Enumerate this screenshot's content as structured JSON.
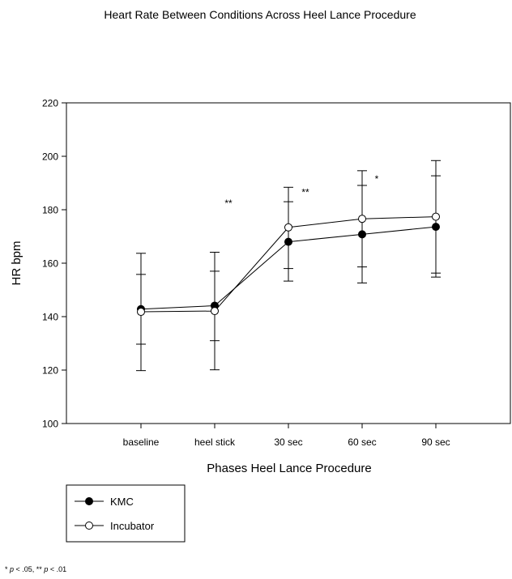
{
  "chart_data": {
    "type": "line",
    "title": "Heart Rate Between Conditions Across Heel Lance Procedure",
    "xlabel": "Phases Heel Lance Procedure",
    "ylabel": "HR bpm",
    "categories": [
      "baseline",
      "heel stick",
      "30 sec",
      "60 sec",
      "90 sec"
    ],
    "ylim": [
      100,
      220
    ],
    "yticks": [
      100,
      120,
      140,
      160,
      180,
      200,
      220
    ],
    "grid": false,
    "legend_position": "bottom-left, below plot",
    "series": [
      {
        "name": "KMC",
        "marker": "filled-circle",
        "values": [
          142.8,
          144.1,
          168.0,
          170.8,
          173.6
        ],
        "err_low": [
          129.7,
          131.0,
          158.0,
          158.6,
          154.8
        ],
        "err_high": [
          155.8,
          157.0,
          183.0,
          189.1,
          192.7
        ]
      },
      {
        "name": "Incubator",
        "marker": "open-circle",
        "values": [
          141.8,
          142.1,
          173.4,
          176.6,
          177.4
        ],
        "err_low": [
          119.8,
          120.1,
          153.3,
          152.6,
          156.3
        ],
        "err_high": [
          163.7,
          164.1,
          188.4,
          194.6,
          198.4
        ]
      }
    ],
    "annotations": [
      {
        "text": "**",
        "x": "heel stick",
        "y": 182.5
      },
      {
        "text": "**",
        "x": "30 sec",
        "y": 186.5
      },
      {
        "text": "*",
        "x": "60 sec",
        "y": 191.5
      }
    ],
    "footnote": {
      "part1": "* ",
      "p1": "p",
      "part2": " < .05, ** ",
      "p2": "p",
      "part3": " < .01"
    }
  },
  "colors": {
    "line": "#000000",
    "background": "#ffffff"
  }
}
